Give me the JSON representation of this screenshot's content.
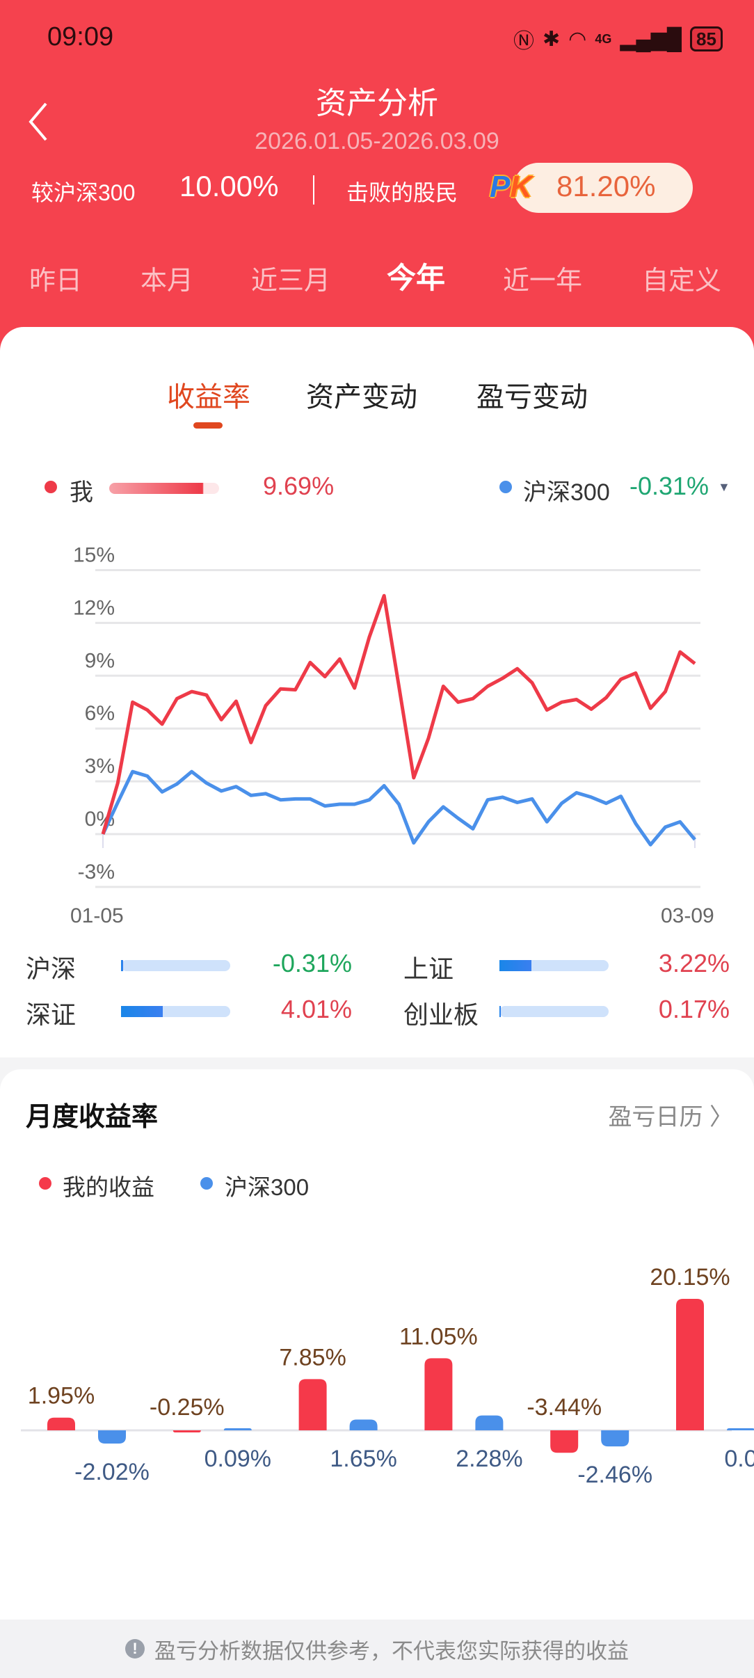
{
  "status_bar": {
    "time": "09:09",
    "battery": "85",
    "network": "4G",
    "icons": [
      "nfc-icon",
      "bluetooth-icon",
      "wifi-icon",
      "signal-icon",
      "battery-icon"
    ]
  },
  "header": {
    "title": "资产分析",
    "date_range": "2026.01.05-2026.03.09",
    "compare_label": "较沪深300",
    "compare_value": "10.00%",
    "beat_label": "击败的股民",
    "pk_badge": "PK",
    "beat_value": "81.20%"
  },
  "range_tabs": [
    {
      "label": "昨日",
      "active": false
    },
    {
      "label": "本月",
      "active": false
    },
    {
      "label": "近三月",
      "active": false
    },
    {
      "label": "今年",
      "active": true
    },
    {
      "label": "近一年",
      "active": false
    },
    {
      "label": "自定义",
      "active": false
    }
  ],
  "sub_tabs": [
    {
      "label": "收益率",
      "active": true
    },
    {
      "label": "资产变动",
      "active": false
    },
    {
      "label": "盈亏变动",
      "active": false
    }
  ],
  "legend": {
    "me_label": "我",
    "me_value": "9.69%",
    "bench_label": "沪深300",
    "bench_value": "-0.31%"
  },
  "colors": {
    "header_bg": "#f5424e",
    "me": "#ee3a48",
    "bench": "#4a90ea",
    "up": "#e0414f",
    "down": "#1ea65c"
  },
  "indices": [
    {
      "label": "沪深",
      "value": "-0.31%",
      "fill": 0.02,
      "dir": "down"
    },
    {
      "label": "上证",
      "value": "3.22%",
      "fill": 0.29,
      "dir": "up"
    },
    {
      "label": "深证",
      "value": "4.01%",
      "fill": 0.38,
      "dir": "up"
    },
    {
      "label": "创业板",
      "value": "0.17%",
      "fill": 0.01,
      "dir": "up"
    }
  ],
  "monthly": {
    "title": "月度收益率",
    "calendar_link": "盈亏日历",
    "legend_me": "我的收益",
    "legend_bench": "沪深300"
  },
  "footer": {
    "text": "盈亏分析数据仅供参考，不代表您实际获得的收益"
  },
  "chart_data": [
    {
      "type": "line",
      "x_tick_labels": [
        "01-05",
        "03-09"
      ],
      "y_tick_labels": [
        "15%",
        "12%",
        "9%",
        "6%",
        "3%",
        "0%",
        "-3%"
      ],
      "y_ticks": [
        15,
        12,
        9,
        6,
        3,
        0,
        -3
      ],
      "ylim": [
        -3,
        15
      ],
      "grid": true,
      "series": [
        {
          "name": "我",
          "color": "#ee3a48",
          "values": [
            0,
            2.9,
            7.5,
            7.05,
            6.25,
            7.7,
            8.1,
            7.9,
            6.5,
            7.55,
            5.2,
            7.3,
            8.25,
            8.2,
            9.75,
            8.95,
            9.95,
            8.3,
            11.2,
            13.55,
            8.4,
            3.2,
            5.45,
            8.4,
            7.5,
            7.7,
            8.4,
            8.85,
            9.4,
            8.6,
            7.05,
            7.5,
            7.65,
            7.1,
            7.75,
            8.8,
            9.15,
            7.15,
            8.1,
            10.35,
            9.69
          ]
        },
        {
          "name": "沪深300",
          "color": "#4a90ea",
          "values": [
            0,
            1.8,
            3.55,
            3.3,
            2.4,
            2.85,
            3.55,
            2.9,
            2.45,
            2.7,
            2.2,
            2.3,
            1.95,
            2.0,
            2.0,
            1.6,
            1.7,
            1.7,
            1.95,
            2.75,
            1.7,
            -0.5,
            0.7,
            1.55,
            0.9,
            0.3,
            1.95,
            2.1,
            1.8,
            2.0,
            0.7,
            1.75,
            2.35,
            2.1,
            1.75,
            2.15,
            0.6,
            -0.6,
            0.4,
            0.7,
            -0.31
          ]
        }
      ]
    },
    {
      "type": "bar",
      "series": [
        {
          "name": "我的收益",
          "color": "#f5394a",
          "values": [
            1.95,
            -0.25,
            7.85,
            11.05,
            -3.44,
            20.15
          ],
          "labels": [
            "1.95%",
            "-0.25%",
            "7.85%",
            "11.05%",
            "-3.44%",
            "20.15%"
          ]
        },
        {
          "name": "沪深300",
          "color": "#4a90ea",
          "values": [
            -2.02,
            0.09,
            1.65,
            2.28,
            -2.46,
            0.0
          ],
          "labels": [
            "-2.02%",
            "0.09%",
            "1.65%",
            "2.28%",
            "-2.46%",
            "0.0"
          ]
        }
      ]
    }
  ]
}
